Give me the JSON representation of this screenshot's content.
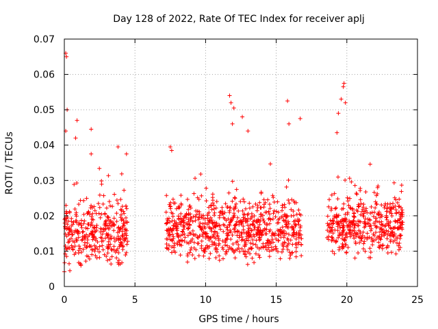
{
  "chart_data": {
    "type": "scatter",
    "title": "Day 128 of 2022, Rate Of TEC Index for receiver aplj",
    "xlabel": "GPS time / hours",
    "ylabel": "ROTI / TECUs",
    "xlim": [
      0,
      25
    ],
    "ylim": [
      0,
      0.07
    ],
    "x_ticks": [
      "0",
      "5",
      "10",
      "15",
      "20",
      "25"
    ],
    "y_ticks": [
      "0",
      "0.01",
      "0.02",
      "0.03",
      "0.04",
      "0.05",
      "0.06",
      "0.07"
    ],
    "grid": true,
    "marker": "+",
    "color": "#ff0000",
    "segments": [
      {
        "x_start": 0.0,
        "x_end": 4.5,
        "y_base": 0.015,
        "y_spread": 0.009
      },
      {
        "x_start": 7.2,
        "x_end": 16.8,
        "y_base": 0.016,
        "y_spread": 0.009
      },
      {
        "x_start": 18.6,
        "x_end": 24.0,
        "y_base": 0.017,
        "y_spread": 0.009
      }
    ],
    "highlights": [
      {
        "x": 0.1,
        "y": 0.066
      },
      {
        "x": 0.15,
        "y": 0.065
      },
      {
        "x": 0.2,
        "y": 0.05
      },
      {
        "x": 0.1,
        "y": 0.044
      },
      {
        "x": 0.9,
        "y": 0.047
      },
      {
        "x": 0.8,
        "y": 0.042
      },
      {
        "x": 1.9,
        "y": 0.0445
      },
      {
        "x": 1.9,
        "y": 0.0375
      },
      {
        "x": 3.8,
        "y": 0.0395
      },
      {
        "x": 4.4,
        "y": 0.0375
      },
      {
        "x": 7.5,
        "y": 0.0395
      },
      {
        "x": 7.6,
        "y": 0.0385
      },
      {
        "x": 11.7,
        "y": 0.054
      },
      {
        "x": 11.8,
        "y": 0.052
      },
      {
        "x": 12.0,
        "y": 0.0505
      },
      {
        "x": 11.9,
        "y": 0.046
      },
      {
        "x": 12.6,
        "y": 0.048
      },
      {
        "x": 13.0,
        "y": 0.044
      },
      {
        "x": 15.8,
        "y": 0.0525
      },
      {
        "x": 15.9,
        "y": 0.046
      },
      {
        "x": 16.7,
        "y": 0.0475
      },
      {
        "x": 19.8,
        "y": 0.0575
      },
      {
        "x": 19.75,
        "y": 0.0565
      },
      {
        "x": 19.6,
        "y": 0.053
      },
      {
        "x": 19.9,
        "y": 0.052
      },
      {
        "x": 19.4,
        "y": 0.049
      },
      {
        "x": 19.3,
        "y": 0.0435
      }
    ]
  }
}
